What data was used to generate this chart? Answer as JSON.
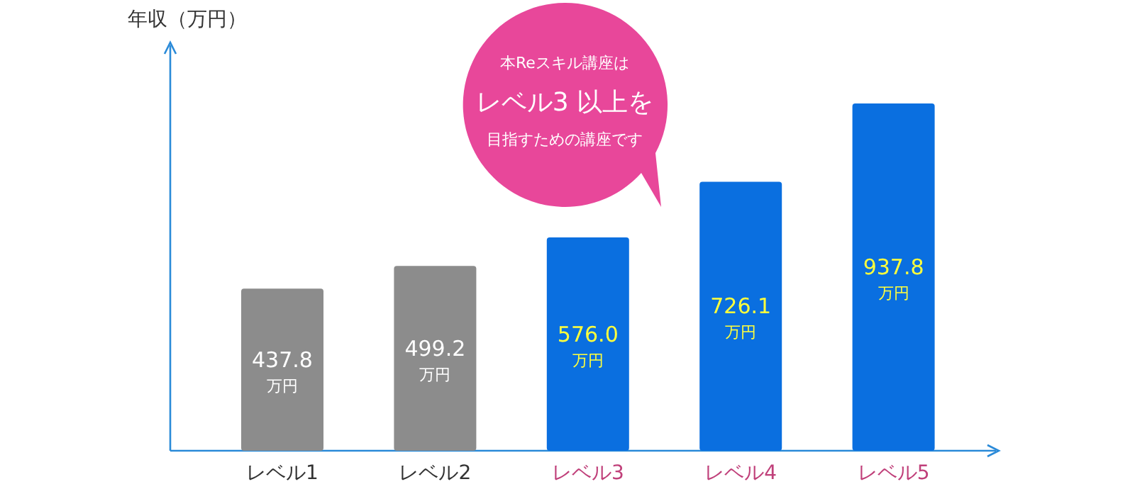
{
  "chart_data": {
    "type": "bar",
    "ylabel": "年収（万円）",
    "categories": [
      "レベル1",
      "レベル2",
      "レベル3",
      "レベル4",
      "レベル5"
    ],
    "values": [
      437.8,
      499.2,
      576.0,
      726.1,
      937.8
    ],
    "colors": [
      "#8c8c8c",
      "#8c8c8c",
      "#0a6fe0",
      "#0a6fe0",
      "#0a6fe0"
    ],
    "value_labels": [
      "437.8$_{万円}$",
      "499.2$_{万円}$",
      "576.0$_{万円}$",
      "726.1$_{万円}$",
      "937.8$_{万円}$"
    ],
    "annotations": [
      "本Reスキル講座は",
      "レベル3 以上を",
      "目指すための講座です"
    ]
  }
}
